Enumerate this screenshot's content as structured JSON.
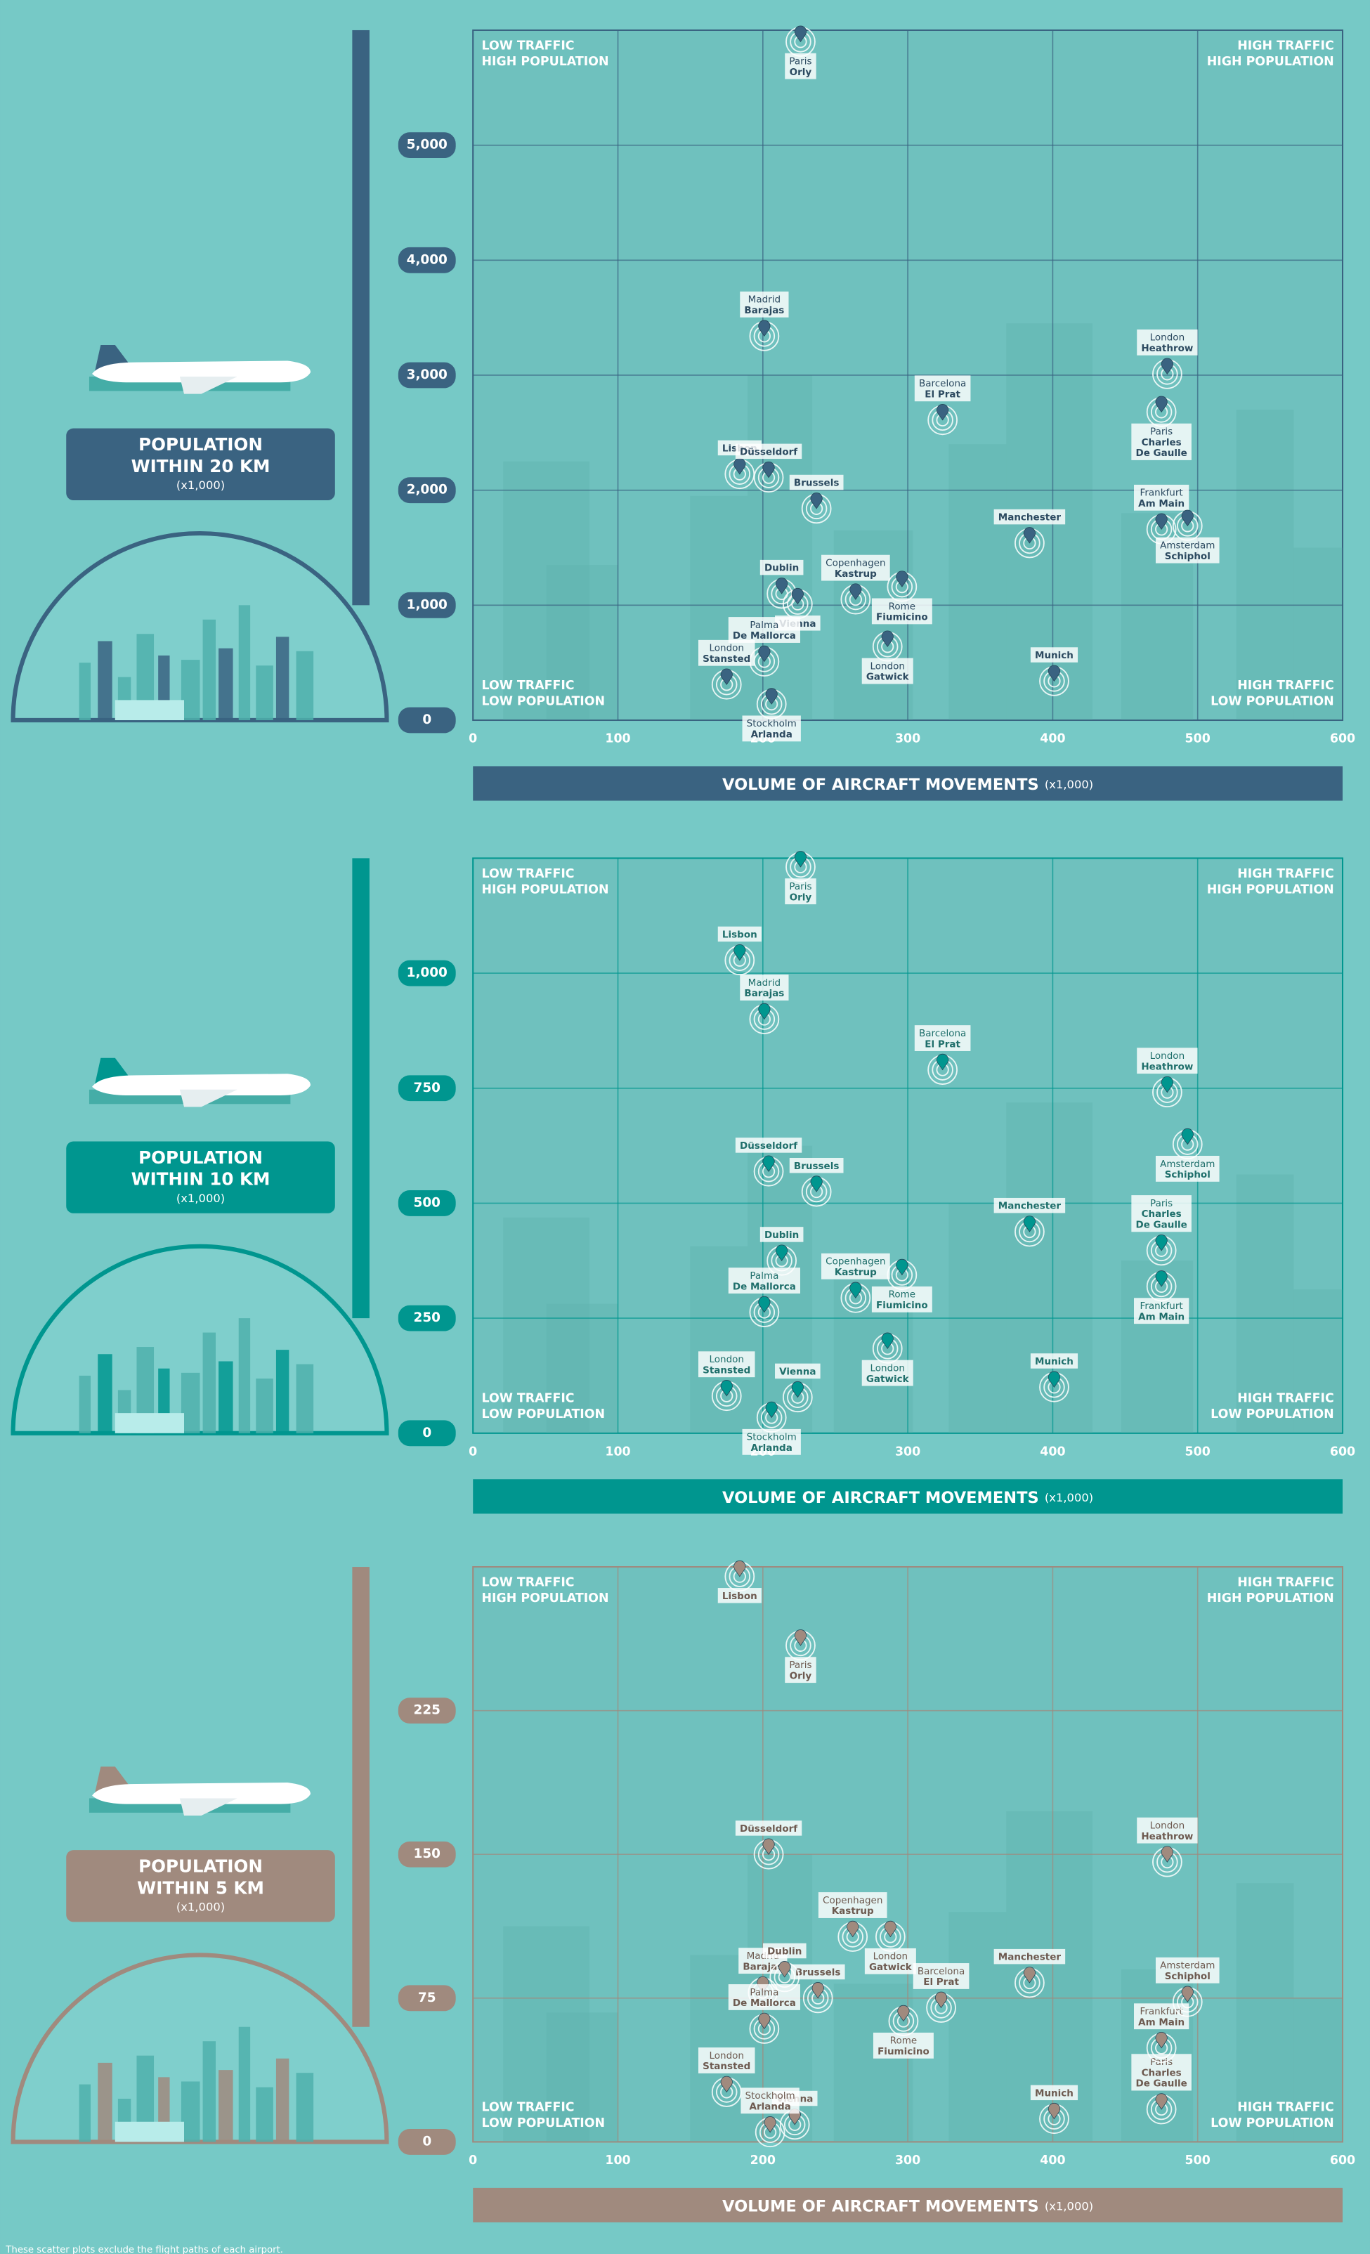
{
  "chart_data": [
    {
      "type": "scatter",
      "color": "#3a6381",
      "title": [
        "POPULATION",
        "WITHIN 20 KM"
      ],
      "unit": "(x1,000)",
      "x_label": "VOLUME OF AIRCRAFT MOVEMENTS",
      "x_unit": "(x1,000)",
      "quadrants": {
        "top_left": [
          "LOW TRAFFIC",
          "HIGH POPULATION"
        ],
        "top_right": [
          "HIGH TRAFFIC",
          "HIGH POPULATION"
        ],
        "bottom_left": [
          "LOW TRAFFIC",
          "LOW POPULATION"
        ],
        "bottom_right": [
          "HIGH TRAFFIC",
          "LOW POPULATION"
        ]
      },
      "xlim": [
        0,
        600
      ],
      "xticks": [
        0,
        100,
        200,
        300,
        400,
        500,
        600
      ],
      "ylim": [
        0,
        6000
      ],
      "yticks": [
        0,
        {
          "value": 1000,
          "label": "1,000"
        },
        {
          "value": 2000,
          "label": "2,000"
        },
        {
          "value": 3000,
          "label": "3,000"
        },
        {
          "value": 4000,
          "label": "4,000"
        },
        {
          "value": 5000,
          "label": "5,000"
        }
      ],
      "labels": [
        [
          "Paris",
          "Orly"
        ],
        [
          "Madrid",
          "Barajas"
        ],
        [
          "London",
          "Heathrow"
        ],
        [
          "Barcelona",
          "El Prat"
        ],
        [
          "Paris",
          "Charles",
          "De Gaulle"
        ],
        [
          "Lisbon"
        ],
        [
          "Düsseldorf"
        ],
        [
          "Brussels"
        ],
        [
          "Manchester"
        ],
        [
          "Frankfurt",
          "Am Main"
        ],
        [
          "Amsterdam",
          "Schiphol"
        ],
        [
          "Dublin"
        ],
        [
          "Copenhagen",
          "Kastrup"
        ],
        [
          "Rome",
          "Fiumicino"
        ],
        [
          "Vienna"
        ],
        [
          "Palma",
          "De Mallorca"
        ],
        [
          "London",
          "Gatwick"
        ],
        [
          "Munich"
        ],
        [
          "London",
          "Stansted"
        ],
        [
          "Stockholm",
          "Arlanda"
        ]
      ],
      "x": [
        226,
        201,
        479,
        324,
        475,
        184,
        204,
        237,
        384,
        475,
        493,
        213,
        264,
        296,
        224,
        201,
        286,
        401,
        175,
        206
      ],
      "values": [
        5900,
        3340,
        3010,
        2610,
        2680,
        2140,
        2110,
        1840,
        1540,
        1660,
        1690,
        1100,
        1050,
        1160,
        1010,
        510,
        640,
        340,
        310,
        140
      ]
    },
    {
      "type": "scatter",
      "color": "#00968f",
      "title": [
        "POPULATION",
        "WITHIN 10 KM"
      ],
      "unit": "(x1,000)",
      "x_label": "VOLUME OF AIRCRAFT MOVEMENTS",
      "x_unit": "(x1,000)",
      "quadrants": {
        "top_left": [
          "LOW TRAFFIC",
          "HIGH POPULATION"
        ],
        "top_right": [
          "HIGH TRAFFIC",
          "HIGH POPULATION"
        ],
        "bottom_left": [
          "LOW TRAFFIC",
          "LOW POPULATION"
        ],
        "bottom_right": [
          "HIGH TRAFFIC",
          "LOW POPULATION"
        ]
      },
      "xlim": [
        0,
        600
      ],
      "xticks": [
        0,
        100,
        200,
        300,
        400,
        500,
        600
      ],
      "ylim": [
        0,
        1250
      ],
      "yticks": [
        0,
        250,
        500,
        750,
        {
          "value": 1000,
          "label": "1,000"
        }
      ],
      "labels": [
        [
          "Paris",
          "Orly"
        ],
        [
          "Madrid",
          "Barajas"
        ],
        [
          "London",
          "Heathrow"
        ],
        [
          "Barcelona",
          "El Prat"
        ],
        [
          "Paris",
          "Charles",
          "De Gaulle"
        ],
        [
          "Lisbon"
        ],
        [
          "Düsseldorf"
        ],
        [
          "Brussels"
        ],
        [
          "Manchester"
        ],
        [
          "Frankfurt",
          "Am Main"
        ],
        [
          "Amsterdam",
          "Schiphol"
        ],
        [
          "Dublin"
        ],
        [
          "Copenhagen",
          "Kastrup"
        ],
        [
          "Rome",
          "Fiumicino"
        ],
        [
          "Vienna"
        ],
        [
          "Palma",
          "De Mallorca"
        ],
        [
          "London",
          "Gatwick"
        ],
        [
          "Munich"
        ],
        [
          "London",
          "Stansted"
        ],
        [
          "Stockholm",
          "Arlanda"
        ]
      ],
      "x": [
        226,
        201,
        479,
        324,
        475,
        184,
        204,
        237,
        384,
        475,
        493,
        213,
        264,
        296,
        224,
        201,
        286,
        401,
        175,
        206
      ],
      "values": [
        1231,
        900,
        741,
        790,
        397,
        1028,
        569,
        525,
        438,
        319,
        628,
        375,
        294,
        344,
        78,
        263,
        184,
        100,
        81,
        34
      ]
    },
    {
      "type": "scatter",
      "color": "#a08a7e",
      "title": [
        "POPULATION",
        "WITHIN 5 KM"
      ],
      "unit": "(x1,000)",
      "x_label": "VOLUME OF AIRCRAFT MOVEMENTS",
      "x_unit": "(x1,000)",
      "quadrants": {
        "top_left": [
          "LOW TRAFFIC",
          "HIGH POPULATION"
        ],
        "top_right": [
          "HIGH TRAFFIC",
          "HIGH POPULATION"
        ],
        "bottom_left": [
          "LOW TRAFFIC",
          "LOW POPULATION"
        ],
        "bottom_right": [
          "HIGH TRAFFIC",
          "LOW POPULATION"
        ]
      },
      "xlim": [
        0,
        600
      ],
      "xticks": [
        0,
        100,
        200,
        300,
        400,
        500,
        600
      ],
      "ylim": [
        0,
        300
      ],
      "yticks": [
        0,
        75,
        150,
        225
      ],
      "labels": [
        [
          "Paris",
          "Orly"
        ],
        [
          "Madrid",
          "Barajas"
        ],
        [
          "London",
          "Heathrow"
        ],
        [
          "Barcelona",
          "El Prat"
        ],
        [
          "Paris",
          "Charles",
          "De Gaulle"
        ],
        [
          "Lisbon"
        ],
        [
          "Düsseldorf"
        ],
        [
          "Brussels"
        ],
        [
          "Manchester"
        ],
        [
          "Frankfurt",
          "Am Main"
        ],
        [
          "Amsterdam",
          "Schiphol"
        ],
        [
          "Dublin"
        ],
        [
          "Copenhagen",
          "Kastrup"
        ],
        [
          "Rome",
          "Fiumicino"
        ],
        [
          "Vienna"
        ],
        [
          "Palma",
          "De Mallorca"
        ],
        [
          "London",
          "Gatwick"
        ],
        [
          "Munich"
        ],
        [
          "London",
          "Stansted"
        ],
        [
          "Stockholm",
          "Arlanda"
        ]
      ],
      "x": [
        226,
        200,
        479,
        323,
        475,
        184,
        204,
        238,
        384,
        475,
        493,
        215,
        262,
        297,
        222,
        201,
        288,
        401,
        175,
        205
      ],
      "values": [
        259,
        78,
        146,
        70,
        17,
        295,
        150,
        75,
        83,
        49,
        73,
        86,
        107,
        63,
        9,
        59,
        107,
        12,
        26,
        5
      ]
    }
  ],
  "footnote": "These scatter plots exclude the flight paths of each airport."
}
